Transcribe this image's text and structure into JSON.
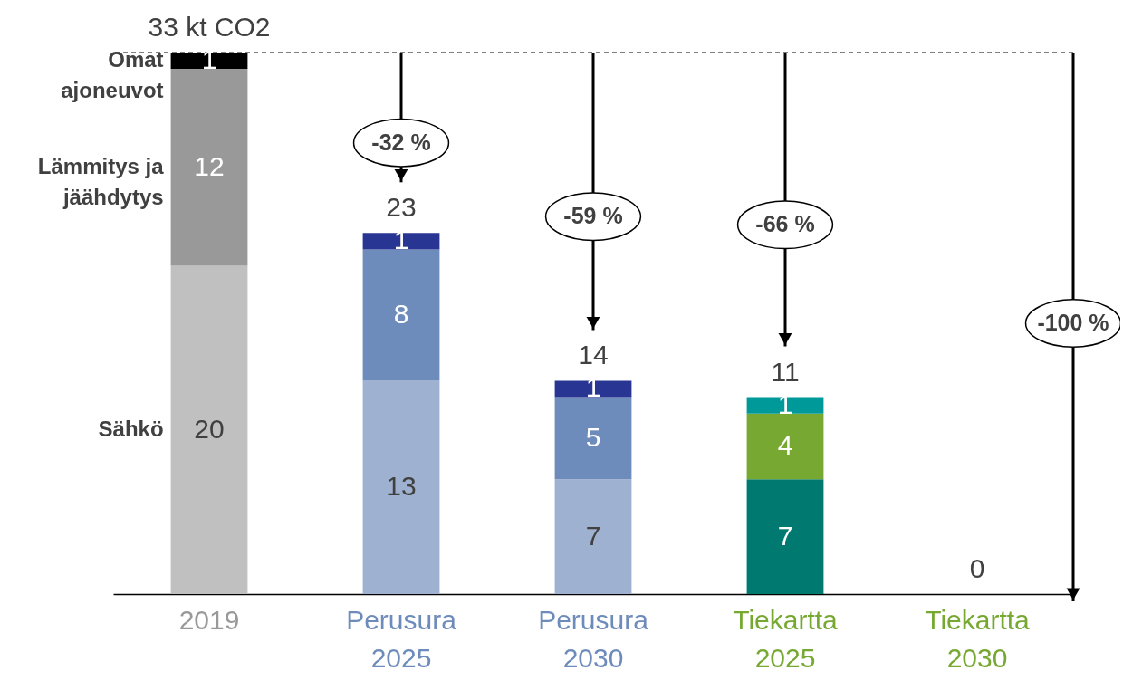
{
  "chart_data": {
    "type": "bar",
    "stacked": true,
    "categories": [
      "2019",
      "Perusura 2025",
      "Perusura 2030",
      "Tiekartta 2025",
      "Tiekartta 2030"
    ],
    "series": [
      {
        "name": "Sähkö",
        "colors": [
          "#c0c0c0",
          "#9fb1d0",
          "#9fb1d0",
          "#007a70",
          "#007a70"
        ],
        "values": [
          20,
          13,
          7,
          7,
          0
        ],
        "value_labels": [
          "20",
          "13",
          "7",
          "7",
          null
        ]
      },
      {
        "name": "Lämmitys ja jäähdytys",
        "colors": [
          "#999999",
          "#6e8cbb",
          "#6e8cbb",
          "#76a832",
          "#76a832"
        ],
        "values": [
          12,
          8,
          5,
          4,
          0
        ],
        "value_labels": [
          "12",
          "8",
          "5",
          "4",
          null
        ]
      },
      {
        "name": "Omat ajoneuvot",
        "colors": [
          "#000000",
          "#283593",
          "#283593",
          "#009999",
          "#009999"
        ],
        "values": [
          1,
          1,
          1,
          1,
          0
        ],
        "value_labels": [
          "1",
          "1",
          "1",
          "1",
          null
        ]
      }
    ],
    "totals": [
      "33 kt CO2",
      "23",
      "14",
      "11",
      "0"
    ],
    "tick_labels": "x",
    "legend": "left",
    "ref_lines": [
      {
        "axis": "y",
        "value": 33,
        "line_style": "dashed"
      }
    ],
    "annotations": [
      "-32 %",
      "-59 %",
      "-66 %",
      "-100 %"
    ]
  }
}
